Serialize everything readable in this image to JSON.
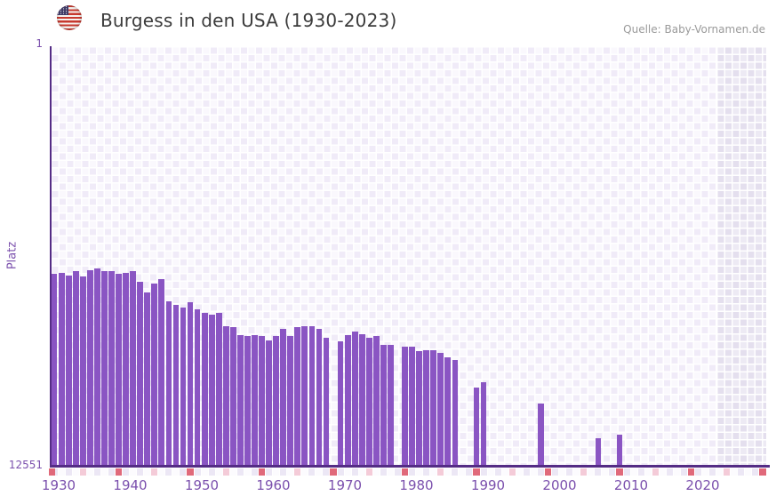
{
  "header": {
    "title": "Burgess in den USA (1930-2023)",
    "source": "Quelle: Baby-Vornamen.de",
    "flag": "us-flag-icon"
  },
  "chart_data": {
    "type": "bar",
    "title": "Burgess in den USA (1930-2023)",
    "xlabel": "",
    "ylabel": "Platz",
    "y_axis": {
      "top_tick_label": "1",
      "bottom_tick_label": "12551",
      "min": 1,
      "max": 12551,
      "inverted": true,
      "note_bars_grow_up_from_max": true
    },
    "x_axis": {
      "range": [
        1930,
        2030
      ],
      "tick_labels": [
        "1930",
        "1940",
        "1950",
        "1960",
        "1970",
        "1980",
        "1990",
        "2000",
        "2010",
        "2020"
      ],
      "ticks": [
        1930,
        1940,
        1950,
        1960,
        1970,
        1980,
        1990,
        2000,
        2010,
        2020
      ]
    },
    "legend": "none",
    "grid": "white checkerboard on pale lavender",
    "series": [
      {
        "name": "Platz",
        "points": [
          {
            "year": 1930,
            "rank": 6820
          },
          {
            "year": 1931,
            "rank": 6770
          },
          {
            "year": 1932,
            "rank": 6850
          },
          {
            "year": 1933,
            "rank": 6740
          },
          {
            "year": 1934,
            "rank": 6900
          },
          {
            "year": 1935,
            "rank": 6690
          },
          {
            "year": 1936,
            "rank": 6660
          },
          {
            "year": 1937,
            "rank": 6740
          },
          {
            "year": 1938,
            "rank": 6720
          },
          {
            "year": 1939,
            "rank": 6820
          },
          {
            "year": 1940,
            "rank": 6770
          },
          {
            "year": 1941,
            "rank": 6720
          },
          {
            "year": 1942,
            "rank": 7040
          },
          {
            "year": 1943,
            "rank": 7360
          },
          {
            "year": 1944,
            "rank": 7090
          },
          {
            "year": 1945,
            "rank": 6980
          },
          {
            "year": 1946,
            "rank": 7620
          },
          {
            "year": 1947,
            "rank": 7750
          },
          {
            "year": 1948,
            "rank": 7830
          },
          {
            "year": 1949,
            "rank": 7650
          },
          {
            "year": 1950,
            "rank": 7860
          },
          {
            "year": 1951,
            "rank": 7990
          },
          {
            "year": 1952,
            "rank": 8020
          },
          {
            "year": 1953,
            "rank": 7970
          },
          {
            "year": 1954,
            "rank": 8370
          },
          {
            "year": 1955,
            "rank": 8390
          },
          {
            "year": 1956,
            "rank": 8630
          },
          {
            "year": 1957,
            "rank": 8660
          },
          {
            "year": 1958,
            "rank": 8630
          },
          {
            "year": 1959,
            "rank": 8660
          },
          {
            "year": 1960,
            "rank": 8790
          },
          {
            "year": 1961,
            "rank": 8660
          },
          {
            "year": 1962,
            "rank": 8450
          },
          {
            "year": 1963,
            "rank": 8660
          },
          {
            "year": 1964,
            "rank": 8390
          },
          {
            "year": 1965,
            "rank": 8370
          },
          {
            "year": 1966,
            "rank": 8370
          },
          {
            "year": 1967,
            "rank": 8450
          },
          {
            "year": 1968,
            "rank": 8710
          },
          {
            "year": 1970,
            "rank": 8820
          },
          {
            "year": 1971,
            "rank": 8630
          },
          {
            "year": 1972,
            "rank": 8530
          },
          {
            "year": 1973,
            "rank": 8610
          },
          {
            "year": 1974,
            "rank": 8710
          },
          {
            "year": 1975,
            "rank": 8660
          },
          {
            "year": 1976,
            "rank": 8930
          },
          {
            "year": 1977,
            "rank": 8930
          },
          {
            "year": 1979,
            "rank": 8980
          },
          {
            "year": 1980,
            "rank": 8980
          },
          {
            "year": 1981,
            "rank": 9110
          },
          {
            "year": 1982,
            "rank": 9090
          },
          {
            "year": 1983,
            "rank": 9090
          },
          {
            "year": 1984,
            "rank": 9170
          },
          {
            "year": 1985,
            "rank": 9300
          },
          {
            "year": 1986,
            "rank": 9380
          },
          {
            "year": 1989,
            "rank": 10210
          },
          {
            "year": 1990,
            "rank": 10050
          },
          {
            "year": 1998,
            "rank": 10690
          },
          {
            "year": 2006,
            "rank": 11720
          },
          {
            "year": 2009,
            "rank": 11620
          }
        ]
      }
    ],
    "no_data_band": {
      "from_year": 2023,
      "to_year": 2030
    },
    "bottom_strip": {
      "red_marker_years": [
        1929,
        1939,
        1949,
        1959,
        1969,
        1979,
        1989,
        1999,
        2009,
        2019,
        2029
      ],
      "pink_marker_years": [
        1934,
        1944,
        1954,
        1964,
        1974,
        1984,
        1994,
        2004,
        2014,
        2024
      ]
    },
    "colors": {
      "bar": "#8a55c3",
      "axis_spine": "#542c85",
      "tick_text": "#7b50ad",
      "title_text": "#3b3b3b",
      "source_text": "#9a9a9a",
      "checker_light_a": "#f0ebf8",
      "checker_light_b": "#faf8fd",
      "band_dark_a": "#e4dfee",
      "band_dark_b": "#edeaf4",
      "strip_red": "#e0697a",
      "strip_pink": "#f4cbd8",
      "strip_pale_a": "#ece7f5",
      "strip_pale_b": "#fcfbfe"
    }
  }
}
